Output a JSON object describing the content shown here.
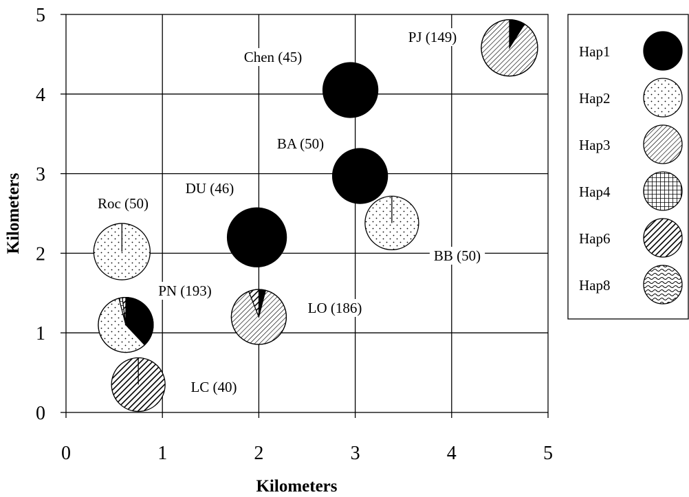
{
  "chart_data": {
    "type": "scatter",
    "xlabel": "Kilometers",
    "ylabel": "Kilometers",
    "xlim": [
      0,
      5
    ],
    "ylim": [
      0,
      5
    ],
    "xticks": [
      "0",
      "1",
      "2",
      "3",
      "4",
      "5"
    ],
    "yticks": [
      "0",
      "1",
      "2",
      "3",
      "4",
      "5"
    ],
    "grid": true,
    "legend_position": "right",
    "legend": [
      {
        "key": "Hap1",
        "label": "Hap1",
        "pattern": "solid-black"
      },
      {
        "key": "Hap2",
        "label": "Hap2",
        "pattern": "dots"
      },
      {
        "key": "Hap3",
        "label": "Hap3",
        "pattern": "fine-diagonal-hatch"
      },
      {
        "key": "Hap4",
        "label": "Hap4",
        "pattern": "crosshatch-grid"
      },
      {
        "key": "Hap6",
        "label": "Hap6",
        "pattern": "bold-diagonal-hatch"
      },
      {
        "key": "Hap8",
        "label": "Hap8",
        "pattern": "waves"
      }
    ],
    "sites": [
      {
        "label": "Chen (45)",
        "x": 2.95,
        "y": 4.05,
        "slices": [
          {
            "hap": "Hap1",
            "fraction": 1.0
          }
        ]
      },
      {
        "label": "PJ (149)",
        "x": 4.6,
        "y": 4.58,
        "slices": [
          {
            "hap": "Hap1",
            "fraction": 0.09
          },
          {
            "hap": "Hap3",
            "fraction": 0.91
          }
        ]
      },
      {
        "label": "BA (50)",
        "x": 3.05,
        "y": 2.97,
        "slices": [
          {
            "hap": "Hap1",
            "fraction": 1.0
          }
        ]
      },
      {
        "label": "BB (50)",
        "x": 3.38,
        "y": 2.38,
        "slices": [
          {
            "hap": "Hap2",
            "fraction": 1.0
          }
        ]
      },
      {
        "label": "DU (46)",
        "x": 1.98,
        "y": 2.2,
        "slices": [
          {
            "hap": "Hap1",
            "fraction": 1.0
          }
        ]
      },
      {
        "label": "Roc (50)",
        "x": 0.58,
        "y": 2.02,
        "slices": [
          {
            "hap": "Hap2",
            "fraction": 1.0
          }
        ]
      },
      {
        "label": "PN (193)",
        "x": 0.62,
        "y": 1.1,
        "slices": [
          {
            "hap": "Hap1",
            "fraction": 0.38
          },
          {
            "hap": "Hap2",
            "fraction": 0.58
          },
          {
            "hap": "Hap4",
            "fraction": 0.02
          },
          {
            "hap": "Hap6",
            "fraction": 0.02
          }
        ]
      },
      {
        "label": "LO (186)",
        "x": 2.0,
        "y": 1.2,
        "slices": [
          {
            "hap": "Hap1",
            "fraction": 0.04
          },
          {
            "hap": "Hap3",
            "fraction": 0.9
          },
          {
            "hap": "Hap6",
            "fraction": 0.06
          }
        ]
      },
      {
        "label": "LC (40)",
        "x": 0.75,
        "y": 0.35,
        "slices": [
          {
            "hap": "Hap6",
            "fraction": 1.0
          }
        ]
      }
    ]
  }
}
